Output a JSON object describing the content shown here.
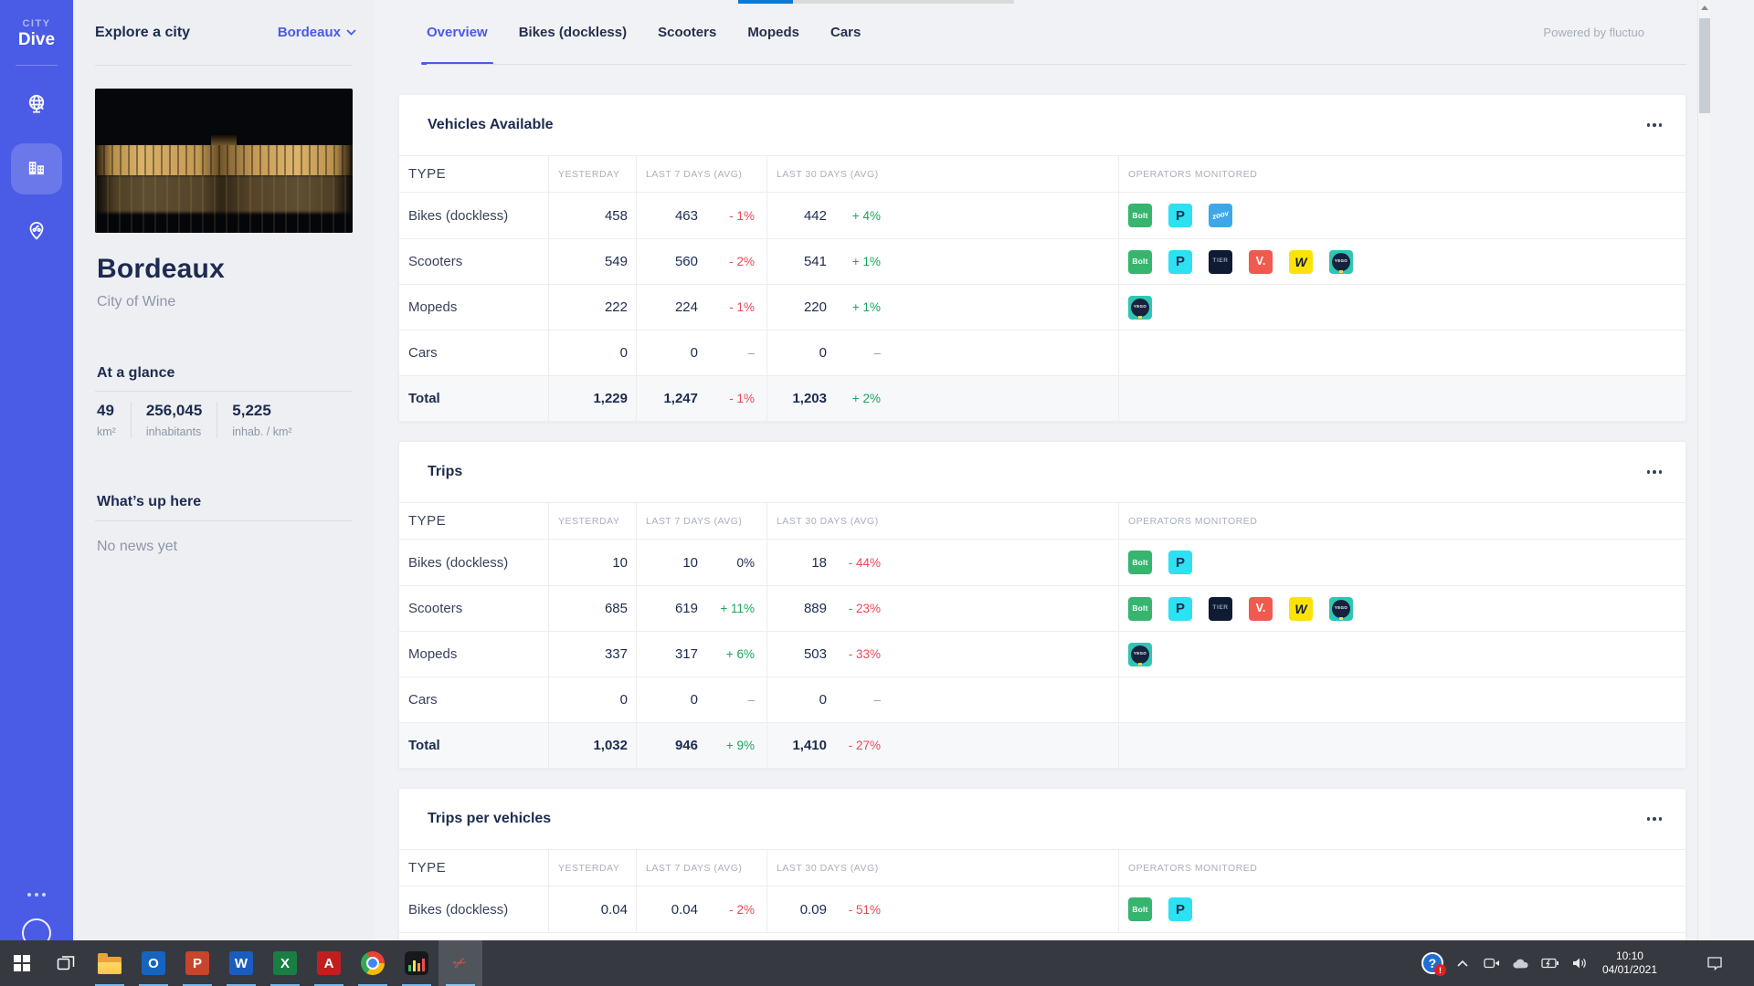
{
  "sidebar": {
    "logo_top": "CITY",
    "logo_bottom": "Dive"
  },
  "city_panel": {
    "header": "Explore a city",
    "selector": "Bordeaux",
    "name": "Bordeaux",
    "subtitle": "City of Wine",
    "glance": {
      "title": "At a glance",
      "stats": [
        {
          "value": "49",
          "label": "km²"
        },
        {
          "value": "256,045",
          "label": "inhabitants"
        },
        {
          "value": "5,225",
          "label": "inhab. / km²"
        }
      ]
    },
    "news": {
      "title": "What’s up here",
      "empty": "No news yet"
    }
  },
  "topbar": {
    "tabs": [
      "Overview",
      "Bikes (dockless)",
      "Scooters",
      "Mopeds",
      "Cars"
    ],
    "active_index": 0,
    "powered_by": "Powered by fluctuo"
  },
  "table_columns": [
    "TYPE",
    "YESTERDAY",
    "LAST 7 DAYS (AVG)",
    "LAST 30 DAYS (AVG)",
    "OPERATORS MONITORED"
  ],
  "tables": [
    {
      "title": "Vehicles Available",
      "rows": [
        {
          "type": "Bikes (dockless)",
          "yesterday": "458",
          "l7": "463",
          "l7_pct": "- 1%",
          "l7_dir": "down",
          "l30": "442",
          "l30_pct": "+ 4%",
          "l30_dir": "up",
          "operators": [
            "bolt",
            "pony",
            "zoov"
          ]
        },
        {
          "type": "Scooters",
          "yesterday": "549",
          "l7": "560",
          "l7_pct": "- 2%",
          "l7_dir": "down",
          "l30": "541",
          "l30_pct": "+ 1%",
          "l30_dir": "up",
          "operators": [
            "bolt",
            "pony",
            "tier",
            "voi",
            "wind",
            "yego"
          ]
        },
        {
          "type": "Mopeds",
          "yesterday": "222",
          "l7": "224",
          "l7_pct": "- 1%",
          "l7_dir": "down",
          "l30": "220",
          "l30_pct": "+ 1%",
          "l30_dir": "up",
          "operators": [
            "yego"
          ]
        },
        {
          "type": "Cars",
          "yesterday": "0",
          "l7": "0",
          "l7_pct": "–",
          "l7_dir": "dash",
          "l30": "0",
          "l30_pct": "–",
          "l30_dir": "dash",
          "operators": []
        }
      ],
      "total": {
        "type": "Total",
        "yesterday": "1,229",
        "l7": "1,247",
        "l7_pct": "- 1%",
        "l7_dir": "down",
        "l30": "1,203",
        "l30_pct": "+ 2%",
        "l30_dir": "up",
        "operators": []
      },
      "partial": false
    },
    {
      "title": "Trips",
      "rows": [
        {
          "type": "Bikes (dockless)",
          "yesterday": "10",
          "l7": "10",
          "l7_pct": "0%",
          "l7_dir": "zero",
          "l30": "18",
          "l30_pct": "- 44%",
          "l30_dir": "down",
          "operators": [
            "bolt",
            "pony"
          ]
        },
        {
          "type": "Scooters",
          "yesterday": "685",
          "l7": "619",
          "l7_pct": "+ 11%",
          "l7_dir": "up",
          "l30": "889",
          "l30_pct": "- 23%",
          "l30_dir": "down",
          "operators": [
            "bolt",
            "pony",
            "tier",
            "voi",
            "wind",
            "yego"
          ]
        },
        {
          "type": "Mopeds",
          "yesterday": "337",
          "l7": "317",
          "l7_pct": "+ 6%",
          "l7_dir": "up",
          "l30": "503",
          "l30_pct": "- 33%",
          "l30_dir": "down",
          "operators": [
            "yego"
          ]
        },
        {
          "type": "Cars",
          "yesterday": "0",
          "l7": "0",
          "l7_pct": "–",
          "l7_dir": "dash",
          "l30": "0",
          "l30_pct": "–",
          "l30_dir": "dash",
          "operators": []
        }
      ],
      "total": {
        "type": "Total",
        "yesterday": "1,032",
        "l7": "946",
        "l7_pct": "+ 9%",
        "l7_dir": "up",
        "l30": "1,410",
        "l30_pct": "- 27%",
        "l30_dir": "down",
        "operators": []
      },
      "partial": false
    },
    {
      "title": "Trips per vehicles",
      "rows": [
        {
          "type": "Bikes (dockless)",
          "yesterday": "0.04",
          "l7": "0.04",
          "l7_pct": "- 2%",
          "l7_dir": "down",
          "l30": "0.09",
          "l30_pct": "- 51%",
          "l30_dir": "down",
          "operators": [
            "bolt",
            "pony"
          ]
        }
      ],
      "total": null,
      "partial": true
    }
  ],
  "operators": {
    "bolt": {
      "label": "Bolt",
      "bg": "#36b56f",
      "fg": "#ffffff"
    },
    "pony": {
      "label": "P",
      "bg": "#2be1f2",
      "fg": "#1d2b50"
    },
    "zoov": {
      "label": "zoov",
      "bg": "#3ea7ea",
      "fg": "#ffffff"
    },
    "tier": {
      "label": "TIER",
      "bg": "#0e1b33",
      "fg": "#93a0b4"
    },
    "voi": {
      "label": "V.",
      "bg": "#f05a4f",
      "fg": "#ffffff"
    },
    "wind": {
      "label": "W",
      "bg": "#fbe30a",
      "fg": "#0e1b33"
    },
    "yego": {
      "label": "YEGO",
      "bg": "#2fc7b4",
      "fg": "#ffffff"
    }
  },
  "taskbar": {
    "apps": [
      {
        "kind": "taskview",
        "name": "task-view",
        "running": false,
        "active": false
      },
      {
        "kind": "explorer",
        "name": "file-explorer",
        "running": true,
        "active": false
      },
      {
        "kind": "office",
        "name": "outlook",
        "label": "O",
        "color": "#1565c0",
        "running": true,
        "active": false
      },
      {
        "kind": "office",
        "name": "powerpoint",
        "label": "P",
        "color": "#c8442c",
        "running": true,
        "active": false
      },
      {
        "kind": "office",
        "name": "word",
        "label": "W",
        "color": "#1a5dbe",
        "running": true,
        "active": false
      },
      {
        "kind": "office",
        "name": "excel",
        "label": "X",
        "color": "#1a7e44",
        "running": true,
        "active": false
      },
      {
        "kind": "office",
        "name": "acrobat",
        "label": "A",
        "color": "#c11f1f",
        "running": true,
        "active": false
      },
      {
        "kind": "chrome",
        "name": "chrome",
        "running": true,
        "active": false
      },
      {
        "kind": "equalizer",
        "name": "media-app",
        "running": true,
        "active": false
      },
      {
        "kind": "snip",
        "name": "snipping-tool",
        "running": true,
        "active": true
      }
    ],
    "tray": {
      "help": "?",
      "help_badge": "!",
      "time": "10:10",
      "date": "04/01/2021"
    }
  }
}
